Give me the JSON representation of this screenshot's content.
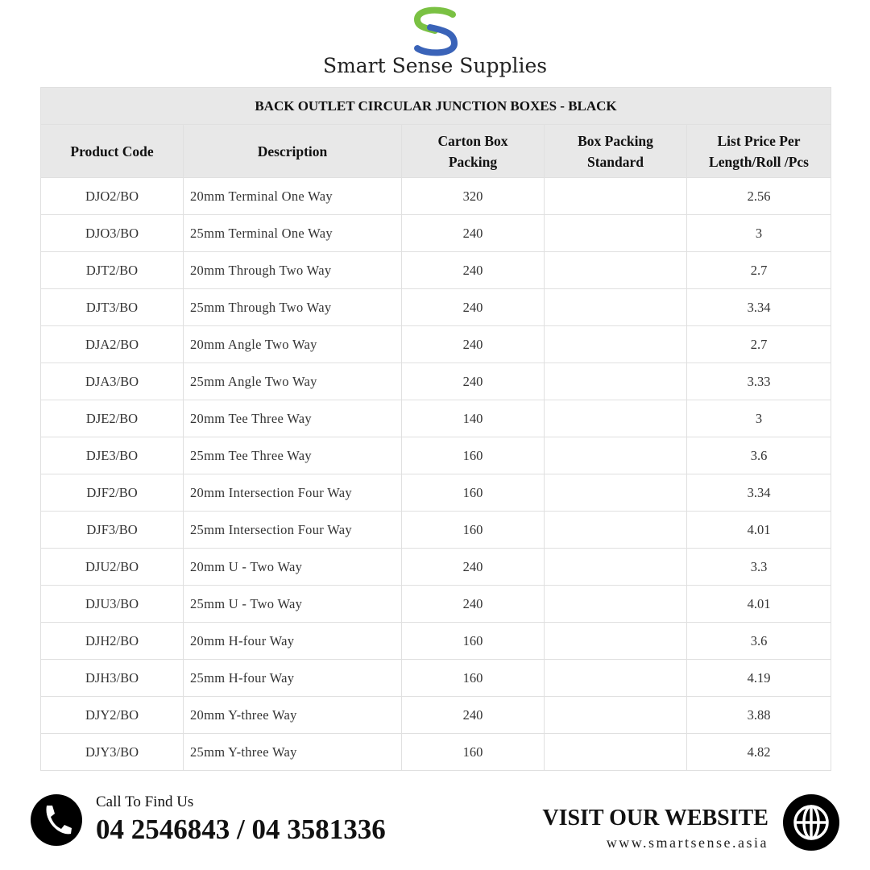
{
  "brand": {
    "name": "Smart Sense Supplies",
    "colors": {
      "green": "#7ac143",
      "blue": "#3a63b8"
    }
  },
  "table": {
    "title": "BACK OUTLET CIRCULAR JUNCTION BOXES - BLACK",
    "headers": [
      "Product Code",
      "Description",
      "Carton Box Packing",
      "Box Packing Standard",
      "List Price Per Length/Roll /Pcs"
    ],
    "rows": [
      [
        "DJO2/BO",
        "20mm Terminal One Way",
        "320",
        "",
        "2.56"
      ],
      [
        "DJO3/BO",
        "25mm Terminal One Way",
        "240",
        "",
        "3"
      ],
      [
        "DJT2/BO",
        "20mm Through Two Way",
        "240",
        "",
        "2.7"
      ],
      [
        "DJT3/BO",
        "25mm Through Two Way",
        "240",
        "",
        "3.34"
      ],
      [
        "DJA2/BO",
        "20mm Angle Two Way",
        "240",
        "",
        "2.7"
      ],
      [
        "DJA3/BO",
        "25mm Angle Two Way",
        "240",
        "",
        "3.33"
      ],
      [
        "DJE2/BO",
        "20mm Tee Three Way",
        "140",
        "",
        "3"
      ],
      [
        "DJE3/BO",
        "25mm Tee Three Way",
        "160",
        "",
        "3.6"
      ],
      [
        "DJF2/BO",
        "20mm Intersection Four Way",
        "160",
        "",
        "3.34"
      ],
      [
        "DJF3/BO",
        "25mm Intersection Four Way",
        "160",
        "",
        "4.01"
      ],
      [
        "DJU2/BO",
        "20mm U - Two Way",
        "240",
        "",
        "3.3"
      ],
      [
        "DJU3/BO",
        "25mm U - Two Way",
        "240",
        "",
        "4.01"
      ],
      [
        "DJH2/BO",
        "20mm H-four Way",
        "160",
        "",
        "3.6"
      ],
      [
        "DJH3/BO",
        "25mm H-four Way",
        "160",
        "",
        "4.19"
      ],
      [
        "DJY2/BO",
        "20mm Y-three Way",
        "240",
        "",
        "3.88"
      ],
      [
        "DJY3/BO",
        "25mm Y-three Way",
        "160",
        "",
        "4.82"
      ]
    ]
  },
  "footer": {
    "call_label": "Call To Find Us",
    "phones": "04 2546843 / 04 3581336",
    "visit": "VISIT OUR WEBSITE",
    "url": "www.smartsense.asia",
    "phone_icon": "phone-icon",
    "globe_icon": "globe-icon"
  }
}
